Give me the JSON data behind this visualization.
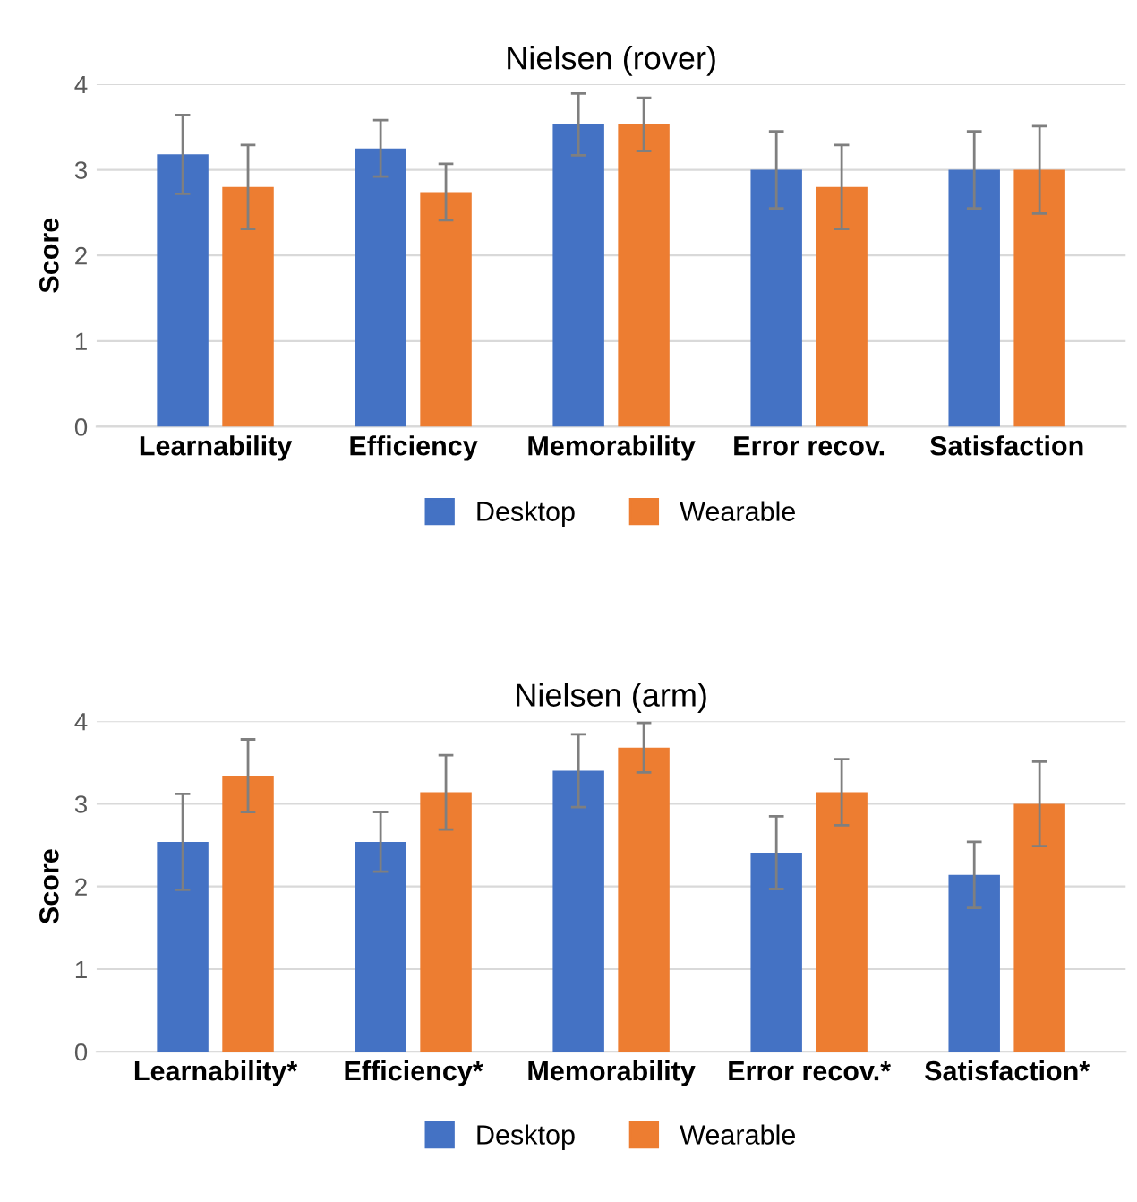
{
  "chart_data": [
    {
      "type": "bar",
      "title": "Nielsen (rover)",
      "ylabel": "Score",
      "categories": [
        "Learnability",
        "Efficiency",
        "Memorability",
        "Error recov.",
        "Satisfaction"
      ],
      "series": [
        {
          "name": "Desktop",
          "color": "#4472c4",
          "values": [
            3.18,
            3.25,
            3.53,
            3.0,
            3.0
          ],
          "errors": [
            0.46,
            0.33,
            0.36,
            0.45,
            0.45
          ]
        },
        {
          "name": "Wearable",
          "color": "#ed7d31",
          "values": [
            2.8,
            2.74,
            3.53,
            2.8,
            3.0
          ],
          "errors": [
            0.49,
            0.33,
            0.31,
            0.49,
            0.51
          ]
        }
      ],
      "ylim": [
        0,
        4
      ],
      "yticks": [
        0,
        1,
        2,
        3,
        4
      ],
      "grid": "y",
      "legend": "bottom"
    },
    {
      "type": "bar",
      "title": "Nielsen (arm)",
      "ylabel": "Score",
      "categories": [
        "Learnability*",
        "Efficiency*",
        "Memorability",
        "Error recov.*",
        "Satisfaction*"
      ],
      "series": [
        {
          "name": "Desktop",
          "color": "#4472c4",
          "values": [
            2.54,
            2.54,
            3.4,
            2.41,
            2.14
          ],
          "errors": [
            0.58,
            0.36,
            0.44,
            0.44,
            0.4
          ]
        },
        {
          "name": "Wearable",
          "color": "#ed7d31",
          "values": [
            3.34,
            3.14,
            3.68,
            3.14,
            3.0
          ],
          "errors": [
            0.44,
            0.45,
            0.3,
            0.4,
            0.51
          ]
        }
      ],
      "ylim": [
        0,
        4
      ],
      "yticks": [
        0,
        1,
        2,
        3,
        4
      ],
      "grid": "y",
      "legend": "bottom"
    }
  ]
}
